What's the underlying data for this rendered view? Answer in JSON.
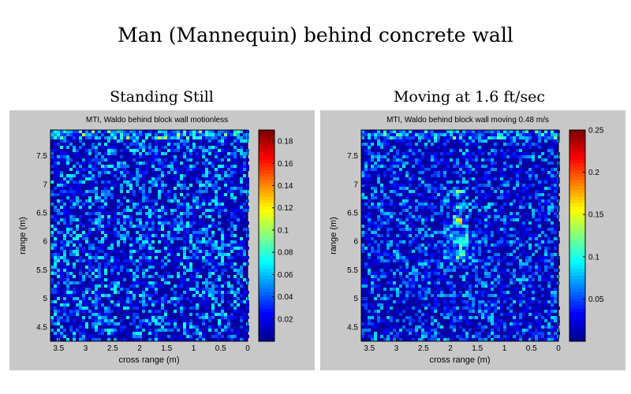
{
  "title": "Man (Mannequin) behind concrete wall",
  "colormap": [
    "#00008f",
    "#0000ff",
    "#0080ff",
    "#00ffff",
    "#80ff80",
    "#ffff00",
    "#ff8000",
    "#ff0000",
    "#800000"
  ],
  "chart_data": [
    {
      "type": "heatmap",
      "label": "Standing Still",
      "title": "MTI, Waldo behind block wall motionless",
      "xlabel": "cross range (m)",
      "ylabel": "range (m)",
      "x_ticks": [
        3.5,
        3,
        2.5,
        2,
        1.5,
        1,
        0.5,
        0
      ],
      "x_tick_labels": [
        "3.5",
        "3",
        "2.5",
        "2",
        "1.5",
        "1",
        "0.5",
        "0"
      ],
      "y_ticks": [
        4.5,
        5,
        5.5,
        6,
        6.5,
        7,
        7.5
      ],
      "y_tick_labels": [
        "4.5",
        "5",
        "5.5",
        "6",
        "6.5",
        "7",
        "7.5"
      ],
      "xlim": [
        3.65,
        0
      ],
      "ylim": [
        4.25,
        7.95
      ],
      "colorbar_ticks": [
        0.02,
        0.04,
        0.06,
        0.08,
        0.1,
        0.12,
        0.14,
        0.16,
        0.18
      ],
      "colorbar_tick_labels": [
        "0.02",
        "0.04",
        "0.06",
        "0.08",
        "0.1",
        "0.12",
        "0.14",
        "0.16",
        "0.18"
      ],
      "clim": [
        0,
        0.19
      ],
      "noise_level": 0.035,
      "hotspots": []
    },
    {
      "type": "heatmap",
      "label": "Moving at 1.6 ft/sec",
      "title": "MTI, Waldo behind block wall moving 0.48 m/s",
      "xlabel": "cross range (m)",
      "ylabel": "range (m)",
      "x_ticks": [
        3.5,
        3,
        2.5,
        2,
        1.5,
        1,
        0.5,
        0
      ],
      "x_tick_labels": [
        "3.5",
        "3",
        "2.5",
        "2",
        "1.5",
        "1",
        "0.5",
        "0"
      ],
      "y_ticks": [
        4.5,
        5,
        5.5,
        6,
        6.5,
        7,
        7.5
      ],
      "y_tick_labels": [
        "4.5",
        "5",
        "5.5",
        "6",
        "6.5",
        "7",
        "7.5"
      ],
      "xlim": [
        3.65,
        0
      ],
      "ylim": [
        4.25,
        7.95
      ],
      "colorbar_ticks": [
        0.05,
        0.1,
        0.15,
        0.2,
        0.25
      ],
      "colorbar_tick_labels": [
        "0.05",
        "0.1",
        "0.15",
        "0.2",
        "0.25"
      ],
      "clim": [
        0,
        0.25
      ],
      "noise_level": 0.04,
      "hotspots": [
        {
          "x": 1.85,
          "y": 6.85,
          "sx": 0.1,
          "sy": 0.03,
          "v": 0.25
        },
        {
          "x": 1.85,
          "y": 6.6,
          "sx": 0.1,
          "sy": 0.06,
          "v": 0.13
        },
        {
          "x": 1.85,
          "y": 6.35,
          "sx": 0.09,
          "sy": 0.09,
          "v": 0.19
        },
        {
          "x": 1.85,
          "y": 6.05,
          "sx": 0.22,
          "sy": 0.15,
          "v": 0.09
        },
        {
          "x": 1.85,
          "y": 5.75,
          "sx": 0.25,
          "sy": 0.12,
          "v": 0.07
        }
      ]
    }
  ]
}
